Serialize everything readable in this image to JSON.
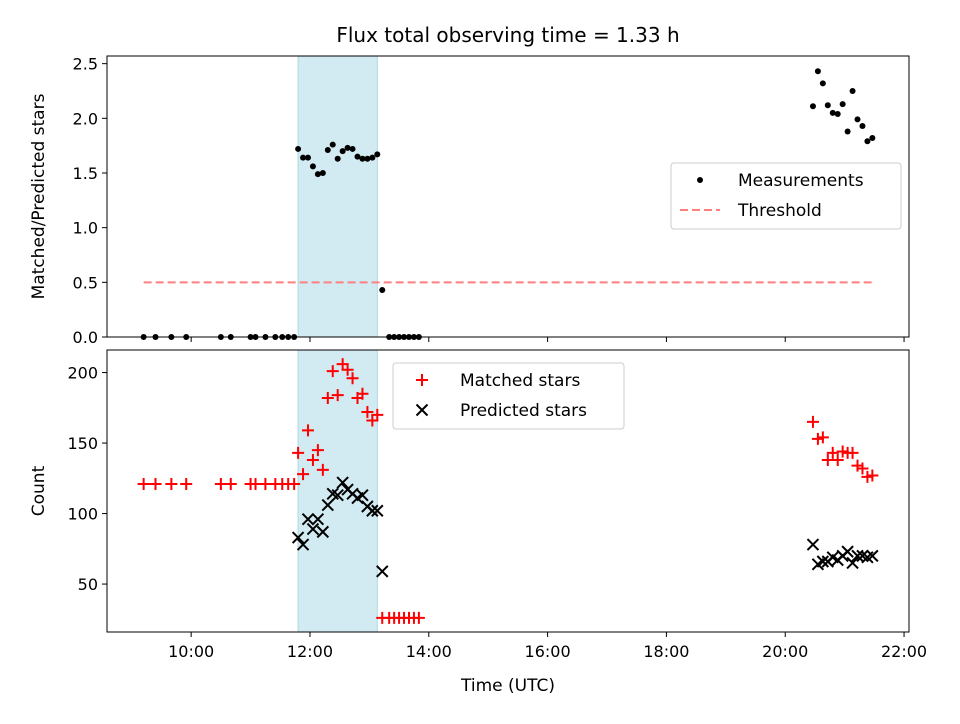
{
  "chart_data": [
    {
      "type": "scatter",
      "title": "Flux total observing time = 1.33 h",
      "ylabel": "Matched/Predicted stars",
      "xlim": [
        "08:35",
        "22:05"
      ],
      "ylim": [
        0,
        2.57
      ],
      "yticks": [
        "0.0",
        "0.5",
        "1.0",
        "1.5",
        "2.0",
        "2.5"
      ],
      "grid": false,
      "legend_position": "center-right",
      "highlight_span": {
        "start": "11:48",
        "end": "13:08",
        "color": "#add8e6"
      },
      "series": [
        {
          "name": "Measurements",
          "marker": "dot",
          "color": "#000000",
          "points": [
            [
              "09:12",
              0
            ],
            [
              "09:24",
              0
            ],
            [
              "09:40",
              0
            ],
            [
              "09:55",
              0
            ],
            [
              "10:30",
              0
            ],
            [
              "10:40",
              0
            ],
            [
              "11:00",
              0
            ],
            [
              "11:05",
              0
            ],
            [
              "11:15",
              0
            ],
            [
              "11:25",
              0
            ],
            [
              "11:32",
              0
            ],
            [
              "11:38",
              0
            ],
            [
              "11:44",
              0
            ],
            [
              "11:48",
              1.72
            ],
            [
              "11:53",
              1.64
            ],
            [
              "11:58",
              1.64
            ],
            [
              "12:03",
              1.56
            ],
            [
              "12:08",
              1.49
            ],
            [
              "12:13",
              1.5
            ],
            [
              "12:18",
              1.71
            ],
            [
              "12:23",
              1.76
            ],
            [
              "12:28",
              1.63
            ],
            [
              "12:33",
              1.7
            ],
            [
              "12:38",
              1.73
            ],
            [
              "12:43",
              1.72
            ],
            [
              "12:48",
              1.65
            ],
            [
              "12:53",
              1.63
            ],
            [
              "12:58",
              1.63
            ],
            [
              "13:03",
              1.64
            ],
            [
              "13:08",
              1.67
            ],
            [
              "13:13",
              0.43
            ],
            [
              "13:20",
              0
            ],
            [
              "13:25",
              0
            ],
            [
              "13:30",
              0
            ],
            [
              "13:35",
              0
            ],
            [
              "13:40",
              0
            ],
            [
              "13:45",
              0
            ],
            [
              "13:50",
              0
            ],
            [
              "20:28",
              2.11
            ],
            [
              "20:33",
              2.43
            ],
            [
              "20:38",
              2.32
            ],
            [
              "20:43",
              2.12
            ],
            [
              "20:48",
              2.05
            ],
            [
              "20:53",
              2.04
            ],
            [
              "20:58",
              2.13
            ],
            [
              "21:03",
              1.88
            ],
            [
              "21:08",
              2.25
            ],
            [
              "21:13",
              1.99
            ],
            [
              "21:18",
              1.93
            ],
            [
              "21:23",
              1.79
            ],
            [
              "21:28",
              1.82
            ]
          ]
        },
        {
          "name": "Threshold",
          "marker": "dashed-line",
          "color": "#ff7f7f",
          "points": [
            [
              "09:12",
              0.5
            ],
            [
              "21:28",
              0.5
            ]
          ]
        }
      ]
    },
    {
      "type": "scatter",
      "xlabel": "Time (UTC)",
      "ylabel": "Count",
      "xlim": [
        "08:35",
        "22:05"
      ],
      "ylim": [
        16,
        216
      ],
      "xticks": [
        "10:00",
        "12:00",
        "14:00",
        "16:00",
        "18:00",
        "20:00",
        "22:00"
      ],
      "yticks": [
        "50",
        "100",
        "150",
        "200"
      ],
      "grid": false,
      "legend_position": "top-center",
      "highlight_span": {
        "start": "11:48",
        "end": "13:08",
        "color": "#add8e6"
      },
      "series": [
        {
          "name": "Matched stars",
          "marker": "plus",
          "color": "#ff0000",
          "points": [
            [
              "09:12",
              121
            ],
            [
              "09:24",
              121
            ],
            [
              "09:40",
              121
            ],
            [
              "09:55",
              121
            ],
            [
              "10:30",
              121
            ],
            [
              "10:40",
              121
            ],
            [
              "11:00",
              121
            ],
            [
              "11:05",
              121
            ],
            [
              "11:15",
              121
            ],
            [
              "11:25",
              121
            ],
            [
              "11:32",
              121
            ],
            [
              "11:38",
              121
            ],
            [
              "11:44",
              121
            ],
            [
              "11:48",
              143
            ],
            [
              "11:53",
              128
            ],
            [
              "11:58",
              159
            ],
            [
              "12:03",
              138
            ],
            [
              "12:08",
              145
            ],
            [
              "12:13",
              131
            ],
            [
              "12:18",
              182
            ],
            [
              "12:23",
              201
            ],
            [
              "12:28",
              184
            ],
            [
              "12:33",
              206
            ],
            [
              "12:38",
              202
            ],
            [
              "12:43",
              196
            ],
            [
              "12:48",
              182
            ],
            [
              "12:53",
              185
            ],
            [
              "12:58",
              172
            ],
            [
              "13:03",
              166
            ],
            [
              "13:08",
              170
            ],
            [
              "13:13",
              26
            ],
            [
              "13:20",
              26
            ],
            [
              "13:25",
              26
            ],
            [
              "13:30",
              26
            ],
            [
              "13:35",
              26
            ],
            [
              "13:40",
              26
            ],
            [
              "13:45",
              26
            ],
            [
              "13:50",
              26
            ],
            [
              "20:28",
              165
            ],
            [
              "20:33",
              153
            ],
            [
              "20:38",
              154
            ],
            [
              "20:43",
              138
            ],
            [
              "20:48",
              143
            ],
            [
              "20:53",
              138
            ],
            [
              "20:58",
              144
            ],
            [
              "21:03",
              143
            ],
            [
              "21:08",
              143
            ],
            [
              "21:13",
              134
            ],
            [
              "21:18",
              132
            ],
            [
              "21:23",
              126
            ],
            [
              "21:28",
              127
            ]
          ]
        },
        {
          "name": "Predicted stars",
          "marker": "x",
          "color": "#000000",
          "points": [
            [
              "11:48",
              83
            ],
            [
              "11:53",
              78
            ],
            [
              "11:58",
              96
            ],
            [
              "12:03",
              89
            ],
            [
              "12:08",
              96
            ],
            [
              "12:13",
              87
            ],
            [
              "12:18",
              106
            ],
            [
              "12:23",
              114
            ],
            [
              "12:28",
              113
            ],
            [
              "12:33",
              122
            ],
            [
              "12:38",
              117
            ],
            [
              "12:43",
              114
            ],
            [
              "12:48",
              111
            ],
            [
              "12:53",
              113
            ],
            [
              "12:58",
              105
            ],
            [
              "13:03",
              102
            ],
            [
              "13:08",
              102
            ],
            [
              "13:13",
              59
            ],
            [
              "20:28",
              78
            ],
            [
              "20:33",
              64
            ],
            [
              "20:38",
              66
            ],
            [
              "20:43",
              66
            ],
            [
              "20:48",
              69
            ],
            [
              "20:53",
              67
            ],
            [
              "20:58",
              70
            ],
            [
              "21:03",
              73
            ],
            [
              "21:08",
              65
            ],
            [
              "21:13",
              70
            ],
            [
              "21:18",
              70
            ],
            [
              "21:23",
              69
            ],
            [
              "21:28",
              70
            ]
          ]
        }
      ]
    }
  ]
}
